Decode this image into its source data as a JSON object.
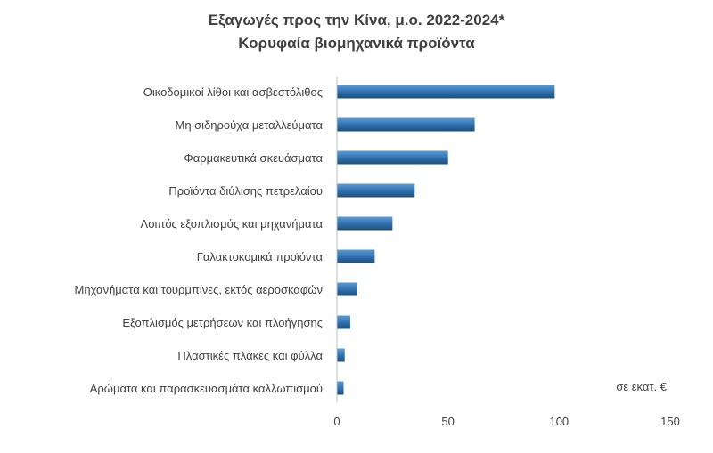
{
  "chart_data": {
    "type": "bar",
    "orientation": "horizontal",
    "title": "Εξαγωγές προς την Κίνα, μ.ο. 2022-2024*",
    "subtitle": "Κορυφαία βιομηχανικά προϊόντα",
    "unit_label": "σε εκατ. €",
    "categories": [
      "Οικοδομικοί λίθοι και ασβεστόλιθος",
      "Μη σιδηρούχα μεταλλεύματα",
      "Φαρμακευτικά σκευάσματα",
      "Προϊόντα διύλισης πετρελαίου",
      "Λοιπός εξοπλισμός και μηχανήματα",
      "Γαλακτοκομικά προϊόντα",
      "Μηχανήματα και τουρμπίνες, εκτός αεροσκαφών",
      "Εξοπλισμός μετρήσεων και πλοήγησης",
      "Πλαστικές πλάκες και φύλλα",
      "Αρώματα και παρασκευασμάτα καλλωπισμού"
    ],
    "values": [
      98,
      62,
      50,
      35,
      25,
      17,
      9,
      6,
      3.5,
      3
    ],
    "xlim": [
      0,
      150
    ],
    "xticks": [
      0,
      50,
      100,
      150
    ],
    "grid": false,
    "colors": {
      "bar_dark": "#1f4e79",
      "bar_light": "#5b9bd5",
      "axis": "#bfbfbf"
    }
  }
}
